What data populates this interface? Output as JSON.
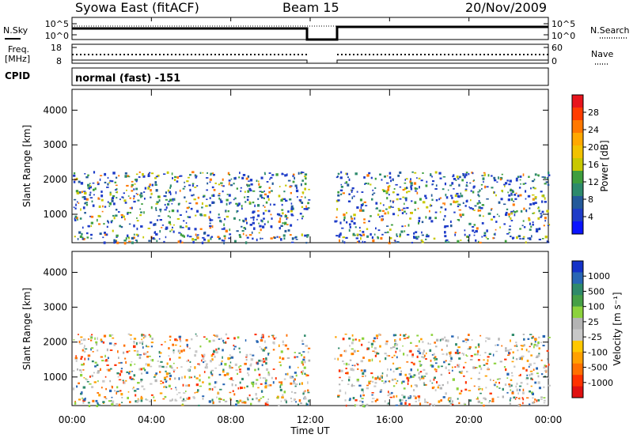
{
  "header": {
    "station": "Syowa East (fitACF)",
    "beam": "Beam 15",
    "date": "20/Nov/2009"
  },
  "summary_panels": {
    "nsky_label": "N.Sky",
    "nsky_ticks": [
      "10^5",
      "10^0"
    ],
    "nsearch_label": "N.Search",
    "nsearch_ticks": [
      "10^5",
      "10^0"
    ],
    "freq_label_1": "Freq.",
    "freq_label_2": "[MHz]",
    "freq_ticks": [
      "18",
      "8"
    ],
    "nave_label": "Nave",
    "nave_ticks": [
      "60",
      "0"
    ],
    "cpid_label": "CPID",
    "cpid_text": "normal (fast) -151"
  },
  "chart_data": [
    {
      "type": "heatmap",
      "name": "power-panel",
      "ylabel": "Slant Range [km]",
      "y_ticks": [
        "4000",
        "3000",
        "2000",
        "1000"
      ],
      "y_values": [
        4000,
        3000,
        2000,
        1000
      ],
      "ylim": [
        180,
        4600
      ],
      "xlim_hours": [
        0,
        24
      ],
      "colorbar": {
        "label": "Power [dB]",
        "ticks": [
          "28",
          "24",
          "20",
          "16",
          "12",
          "8",
          "4"
        ],
        "colors": [
          "#e8141c",
          "#ff3c00",
          "#ff7800",
          "#ffa800",
          "#f2c200",
          "#c8c800",
          "#3e9e3e",
          "#2d8a6c",
          "#245a9a",
          "#1e3cc8",
          "#0a14ff"
        ]
      },
      "data_gap_hours": [
        11.9,
        13.2
      ]
    },
    {
      "type": "heatmap",
      "name": "velocity-panel",
      "ylabel": "Slant Range [km]",
      "y_ticks": [
        "4000",
        "3000",
        "2000",
        "1000"
      ],
      "y_values": [
        4000,
        3000,
        2000,
        1000
      ],
      "ylim": [
        180,
        4600
      ],
      "xlim_hours": [
        0,
        24
      ],
      "colorbar": {
        "label": "Velocity [m s⁻¹]",
        "ticks": [
          "1000",
          "500",
          "100",
          "25",
          "-25",
          "-100",
          "-500",
          "-1000"
        ],
        "colors": [
          "#1432c8",
          "#2866b4",
          "#2f8a6a",
          "#46a046",
          "#8cd23c",
          "#b4b4b4",
          "#c8c8c8",
          "#ffc800",
          "#ffa000",
          "#ff7000",
          "#ff3200",
          "#e01010"
        ]
      },
      "data_gap_hours": [
        11.9,
        13.2
      ]
    }
  ],
  "x_axis": {
    "ticks": [
      "00:00",
      "04:00",
      "08:00",
      "12:00",
      "16:00",
      "20:00",
      "00:00"
    ],
    "label": "Time UT"
  }
}
